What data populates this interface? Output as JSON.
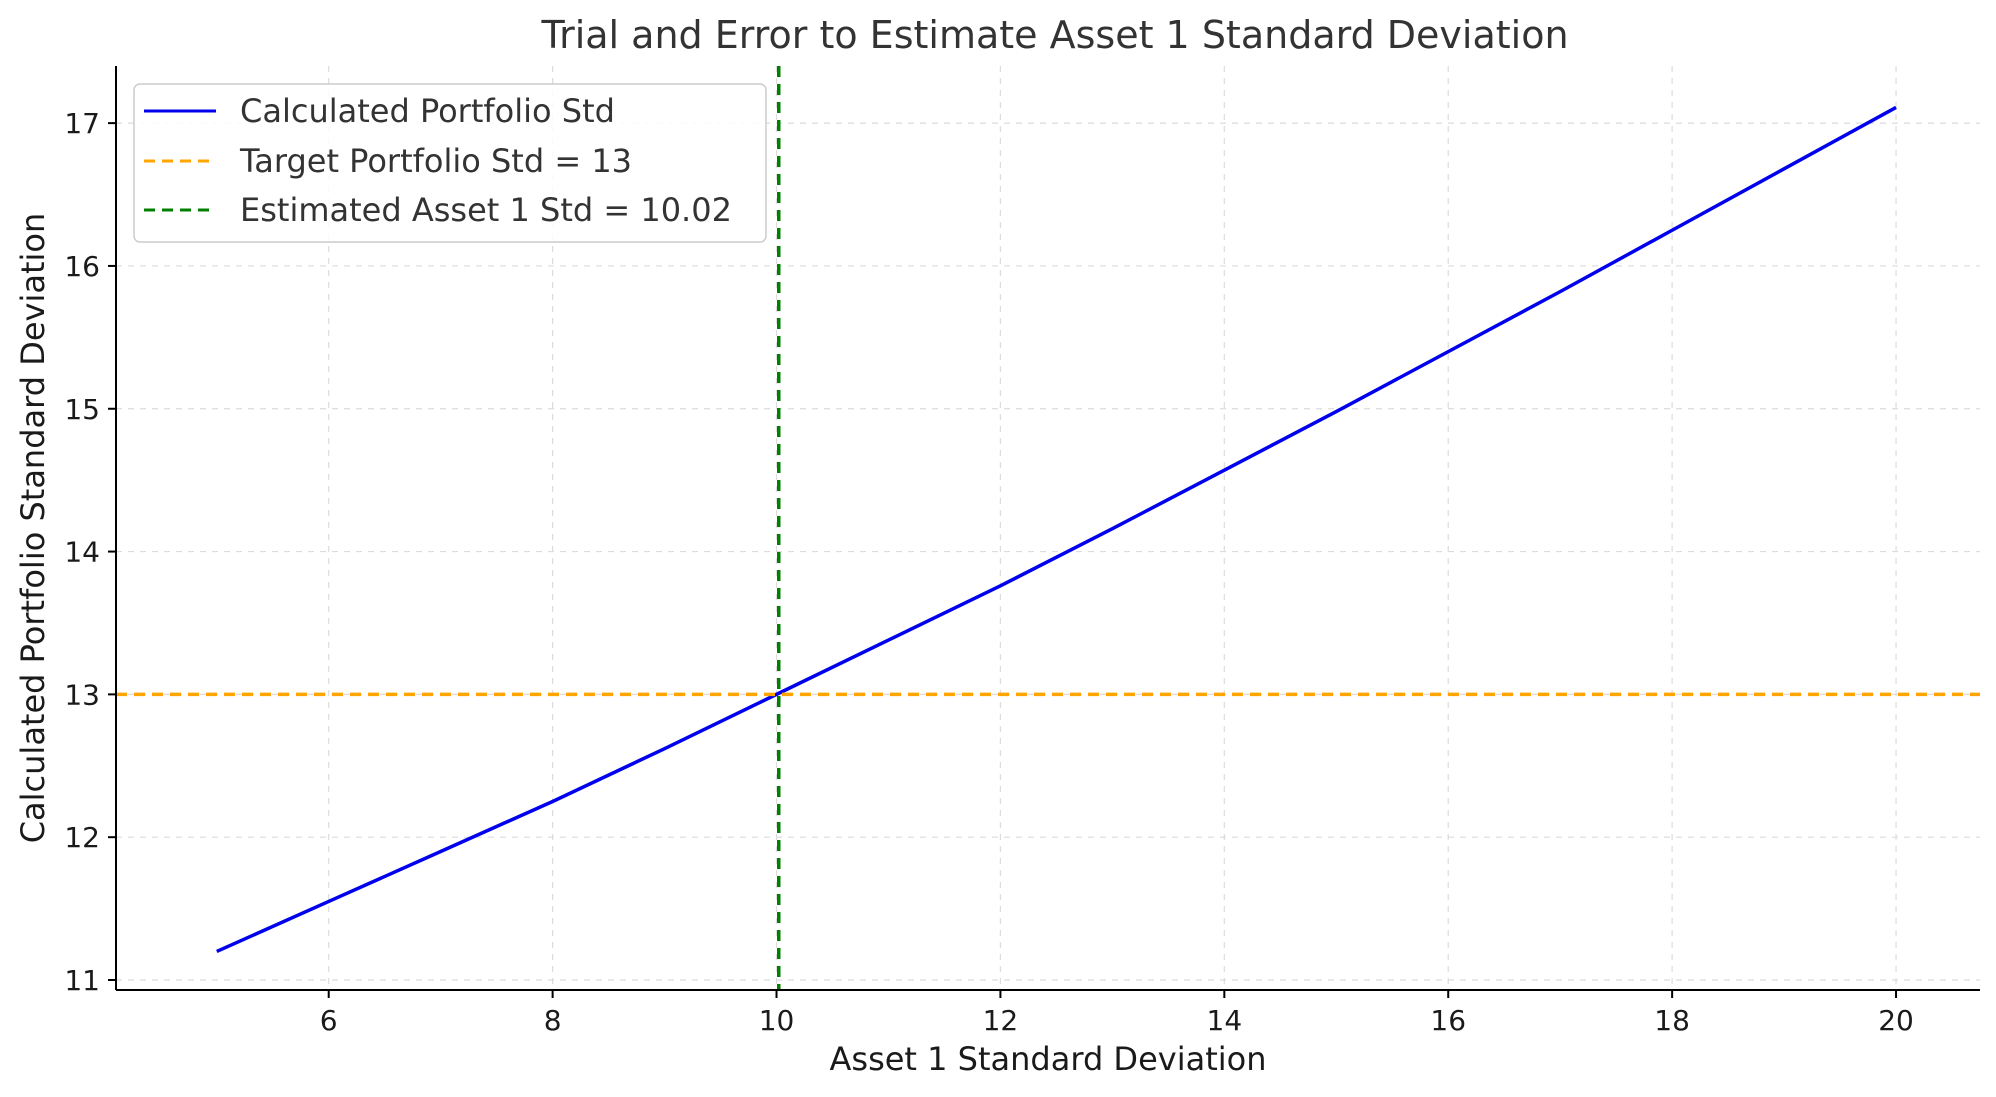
{
  "chart_data": {
    "type": "line",
    "title": "Trial and Error to Estimate Asset 1 Standard Deviation",
    "xlabel": "Asset 1 Standard Deviation",
    "ylabel": "Calculated Portfolio Standard Deviation",
    "xlim": [
      4.1,
      20.75
    ],
    "ylim": [
      10.93,
      17.4
    ],
    "xticks": [
      6,
      8,
      10,
      12,
      14,
      16,
      18,
      20
    ],
    "yticks": [
      11,
      12,
      13,
      14,
      15,
      16,
      17
    ],
    "grid": true,
    "legend_position": "top-left",
    "series": [
      {
        "name": "Calculated Portfolio Std",
        "kind": "line",
        "color": "#0000ee",
        "style": "solid",
        "x": [
          5,
          6,
          7,
          8,
          9,
          10,
          11,
          12,
          13,
          14,
          15,
          16,
          17,
          18,
          19,
          20
        ],
        "y": [
          11.2,
          11.55,
          11.9,
          12.25,
          12.62,
          13.0,
          13.38,
          13.76,
          14.16,
          14.57,
          14.98,
          15.4,
          15.82,
          16.25,
          16.68,
          17.11
        ]
      },
      {
        "name": "Target Portfolio Std = 13",
        "kind": "hline",
        "color": "#ffa500",
        "style": "dashed",
        "value": 13
      },
      {
        "name": "Estimated Asset 1 Std = 10.02",
        "kind": "vline",
        "color": "#008000",
        "style": "dashed",
        "value": 10.02
      }
    ]
  }
}
